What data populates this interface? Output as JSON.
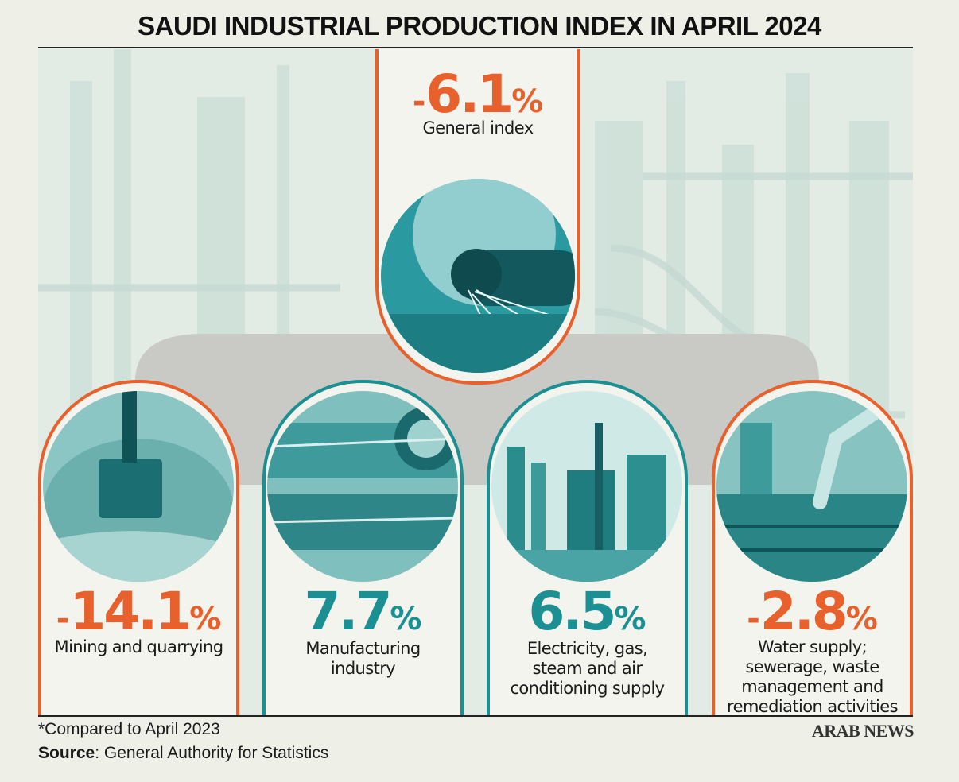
{
  "title": "SAUDI INDUSTRIAL PRODUCTION INDEX IN APRIL 2024",
  "general": {
    "sign": "-",
    "value": "6.1",
    "unit": "%",
    "label": "General index",
    "image_icon": "angle-grinder-sparks-photo"
  },
  "categories": [
    {
      "sign": "-",
      "value": "14.1",
      "unit": "%",
      "label_lines": [
        "Mining and quarrying"
      ],
      "image_icon": "excavator-bucket-photo",
      "accent": "#e8602b"
    },
    {
      "sign": "",
      "value": "7.7",
      "unit": "%",
      "label_lines": [
        "Manufacturing",
        "industry"
      ],
      "image_icon": "industrial-rollers-photo",
      "accent": "#1b8f91"
    },
    {
      "sign": "",
      "value": "6.5",
      "unit": "%",
      "label_lines": [
        "Electricity, gas,",
        "steam and air",
        "conditioning supply"
      ],
      "image_icon": "power-plant-photo",
      "accent": "#1b8f91"
    },
    {
      "sign": "-",
      "value": "2.8",
      "unit": "%",
      "label_lines": [
        "Water supply;",
        "sewerage, waste",
        "management and",
        "remediation activities"
      ],
      "image_icon": "robotic-arm-photo",
      "accent": "#e8602b"
    }
  ],
  "footnote": "*Compared to April 2023",
  "source": {
    "label": "Source",
    "text": ": General Authority for Statistics"
  },
  "brand": "ARAB NEWS",
  "colors": {
    "orange": "#e8602b",
    "teal": "#1b8f91",
    "connector": "#c9cac6",
    "background": "#eef0e8"
  }
}
